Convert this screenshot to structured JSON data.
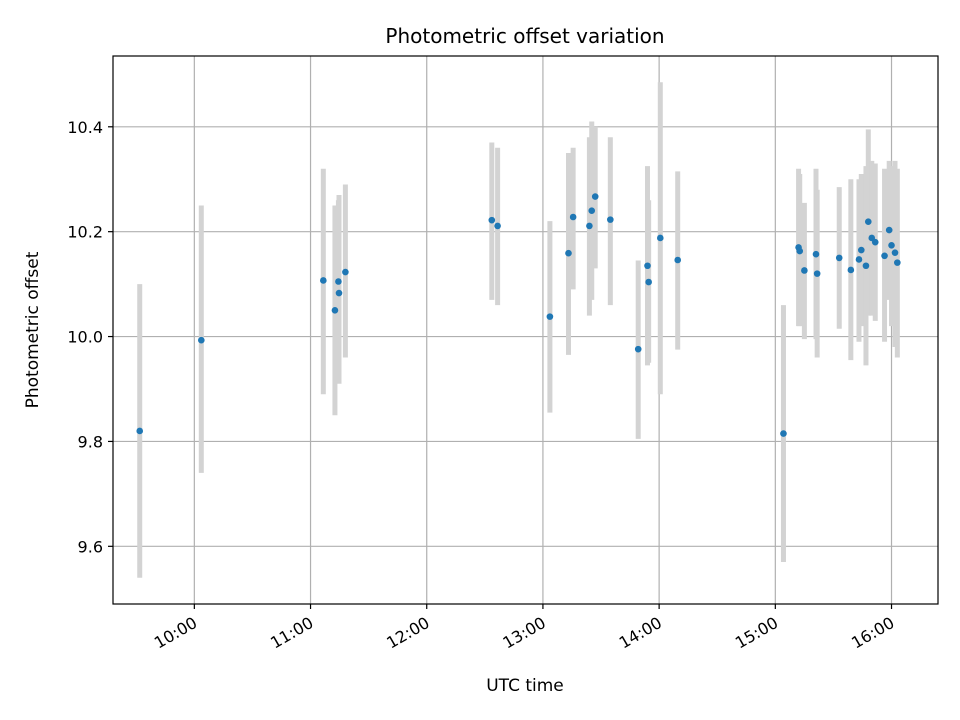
{
  "chart_data": {
    "type": "scatter",
    "title": "Photometric offset variation",
    "xlabel": "UTC time",
    "ylabel": "Photometric offset",
    "grid": true,
    "colors": {
      "point": "#1f77b4",
      "errorbar": "#d3d3d3",
      "grid": "#b0b0b0"
    },
    "xlim": [
      9.3,
      16.4
    ],
    "ylim": [
      9.49,
      10.535
    ],
    "x_ticks": [
      {
        "value": 10,
        "label": "10:00"
      },
      {
        "value": 11,
        "label": "11:00"
      },
      {
        "value": 12,
        "label": "12:00"
      },
      {
        "value": 13,
        "label": "13:00"
      },
      {
        "value": 14,
        "label": "14:00"
      },
      {
        "value": 15,
        "label": "15:00"
      },
      {
        "value": 16,
        "label": "16:00"
      }
    ],
    "y_ticks": [
      {
        "value": 9.6,
        "label": "9.6"
      },
      {
        "value": 9.8,
        "label": "9.8"
      },
      {
        "value": 10.0,
        "label": "10.0"
      },
      {
        "value": 10.2,
        "label": "10.2"
      },
      {
        "value": 10.4,
        "label": "10.4"
      }
    ],
    "points": [
      {
        "x": 9.53,
        "y": 9.82,
        "err_low": 9.54,
        "err_high": 10.1
      },
      {
        "x": 10.06,
        "y": 9.993,
        "err_low": 9.74,
        "err_high": 10.25
      },
      {
        "x": 11.11,
        "y": 10.107,
        "err_low": 9.89,
        "err_high": 10.32
      },
      {
        "x": 11.21,
        "y": 10.05,
        "err_low": 9.85,
        "err_high": 10.25
      },
      {
        "x": 11.24,
        "y": 10.105,
        "err_low": 9.94,
        "err_high": 10.26
      },
      {
        "x": 11.245,
        "y": 10.083,
        "err_low": 9.91,
        "err_high": 10.27
      },
      {
        "x": 11.3,
        "y": 10.123,
        "err_low": 9.96,
        "err_high": 10.29
      },
      {
        "x": 12.56,
        "y": 10.222,
        "err_low": 10.07,
        "err_high": 10.37
      },
      {
        "x": 12.61,
        "y": 10.211,
        "err_low": 10.06,
        "err_high": 10.36
      },
      {
        "x": 13.06,
        "y": 10.038,
        "err_low": 9.855,
        "err_high": 10.22
      },
      {
        "x": 13.22,
        "y": 10.159,
        "err_low": 9.965,
        "err_high": 10.35
      },
      {
        "x": 13.26,
        "y": 10.228,
        "err_low": 10.09,
        "err_high": 10.36
      },
      {
        "x": 13.4,
        "y": 10.211,
        "err_low": 10.04,
        "err_high": 10.38
      },
      {
        "x": 13.42,
        "y": 10.24,
        "err_low": 10.07,
        "err_high": 10.41
      },
      {
        "x": 13.45,
        "y": 10.267,
        "err_low": 10.13,
        "err_high": 10.4
      },
      {
        "x": 13.58,
        "y": 10.223,
        "err_low": 10.06,
        "err_high": 10.38
      },
      {
        "x": 13.82,
        "y": 9.976,
        "err_low": 9.805,
        "err_high": 10.145
      },
      {
        "x": 13.9,
        "y": 10.135,
        "err_low": 9.945,
        "err_high": 10.325
      },
      {
        "x": 13.91,
        "y": 10.104,
        "err_low": 9.95,
        "err_high": 10.26
      },
      {
        "x": 14.01,
        "y": 10.188,
        "err_low": 9.89,
        "err_high": 10.485
      },
      {
        "x": 14.16,
        "y": 10.146,
        "err_low": 9.975,
        "err_high": 10.315
      },
      {
        "x": 15.07,
        "y": 9.815,
        "err_low": 9.57,
        "err_high": 10.06
      },
      {
        "x": 15.2,
        "y": 10.17,
        "err_low": 10.02,
        "err_high": 10.32
      },
      {
        "x": 15.21,
        "y": 10.163,
        "err_low": 10.02,
        "err_high": 10.31
      },
      {
        "x": 15.25,
        "y": 10.126,
        "err_low": 9.995,
        "err_high": 10.255
      },
      {
        "x": 15.35,
        "y": 10.157,
        "err_low": 9.995,
        "err_high": 10.32
      },
      {
        "x": 15.36,
        "y": 10.12,
        "err_low": 9.96,
        "err_high": 10.28
      },
      {
        "x": 15.55,
        "y": 10.15,
        "err_low": 10.015,
        "err_high": 10.285
      },
      {
        "x": 15.65,
        "y": 10.127,
        "err_low": 9.955,
        "err_high": 10.3
      },
      {
        "x": 15.72,
        "y": 10.147,
        "err_low": 9.99,
        "err_high": 10.3
      },
      {
        "x": 15.74,
        "y": 10.165,
        "err_low": 10.02,
        "err_high": 10.31
      },
      {
        "x": 15.78,
        "y": 10.135,
        "err_low": 9.945,
        "err_high": 10.325
      },
      {
        "x": 15.8,
        "y": 10.219,
        "err_low": 10.04,
        "err_high": 10.395
      },
      {
        "x": 15.83,
        "y": 10.188,
        "err_low": 10.04,
        "err_high": 10.335
      },
      {
        "x": 15.86,
        "y": 10.18,
        "err_low": 10.03,
        "err_high": 10.33
      },
      {
        "x": 15.94,
        "y": 10.154,
        "err_low": 9.99,
        "err_high": 10.32
      },
      {
        "x": 15.98,
        "y": 10.203,
        "err_low": 10.07,
        "err_high": 10.335
      },
      {
        "x": 16.0,
        "y": 10.174,
        "err_low": 10.02,
        "err_high": 10.325
      },
      {
        "x": 16.03,
        "y": 10.16,
        "err_low": 9.98,
        "err_high": 10.335
      },
      {
        "x": 16.05,
        "y": 10.141,
        "err_low": 9.96,
        "err_high": 10.32
      }
    ]
  }
}
